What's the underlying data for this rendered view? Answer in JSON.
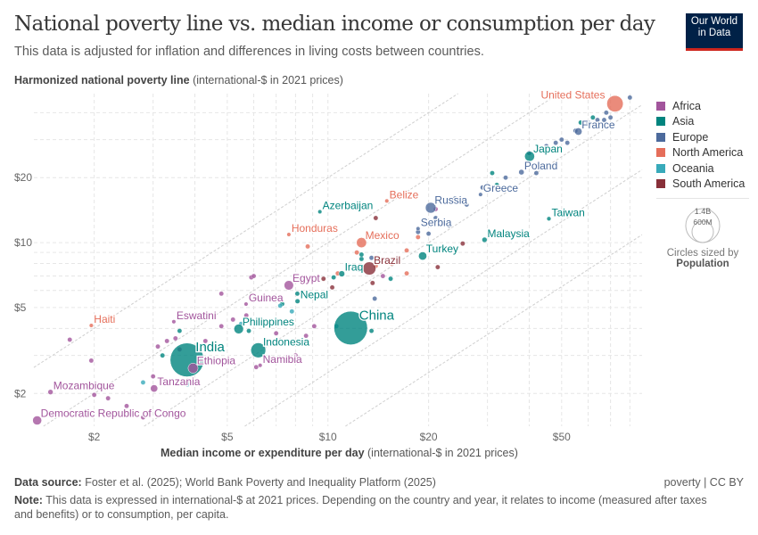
{
  "header": {
    "title": "National poverty line vs. median income or consumption per day",
    "subtitle": "This data is adjusted for inflation and differences in living costs between countries.",
    "logo": "Our World in Data"
  },
  "footer": {
    "source_label": "Data source:",
    "source": "Foster et al. (2025); World Bank Poverty and Inequality Platform (2025)",
    "license": "poverty | CC BY",
    "note_label": "Note:",
    "note": "This data is expressed in international-$ at 2021 prices. Depending on the country and year, it relates to income (measured after taxes and benefits) or to consumption, per capita."
  },
  "size_legend": {
    "big": "1.4B",
    "small": "600M",
    "caption": "Circles sized by",
    "variable": "Population"
  },
  "chart_data": {
    "type": "scatter",
    "title": "National poverty line vs. median income or consumption per day",
    "xlabel_bold": "Median income or expenditure per day",
    "xlabel_unit": "(international-$ in 2021 prices)",
    "ylabel_bold": "Harmonized national poverty line",
    "ylabel_unit": "(international-$ in 2021 prices)",
    "x_scale": "log",
    "y_scale": "log",
    "xlim": [
      1.32,
      87
    ],
    "ylim": [
      1.41,
      49
    ],
    "x_ticks": [
      {
        "v": 2,
        "label": "$2"
      },
      {
        "v": 5,
        "label": "$5"
      },
      {
        "v": 10,
        "label": "$10"
      },
      {
        "v": 20,
        "label": "$20"
      },
      {
        "v": 50,
        "label": "$50"
      }
    ],
    "y_ticks": [
      {
        "v": 2,
        "label": "$2"
      },
      {
        "v": 5,
        "label": "$5"
      },
      {
        "v": 10,
        "label": "$10"
      },
      {
        "v": 20,
        "label": "$20"
      }
    ],
    "grid": true,
    "legend_position": "right",
    "continents": [
      {
        "name": "Africa",
        "color": "#a2559c"
      },
      {
        "name": "Asia",
        "color": "#00847e"
      },
      {
        "name": "Europe",
        "color": "#4c6a9c"
      },
      {
        "name": "North America",
        "color": "#e56e5a"
      },
      {
        "name": "Oceania",
        "color": "#38aaba"
      },
      {
        "name": "South America",
        "color": "#883039"
      }
    ],
    "labeled_points": [
      {
        "name": "United States",
        "x": 72.2,
        "y": 44.0,
        "continent": "North America",
        "population_m": 335
      },
      {
        "name": "France",
        "x": 56.1,
        "y": 32.7,
        "continent": "Europe",
        "population_m": 68
      },
      {
        "name": "Japan",
        "x": 40.1,
        "y": 25.1,
        "continent": "Asia",
        "population_m": 124
      },
      {
        "name": "Poland",
        "x": 37.9,
        "y": 21.2,
        "continent": "Europe",
        "population_m": 37
      },
      {
        "name": "Greece",
        "x": 28.6,
        "y": 16.7,
        "continent": "Europe",
        "population_m": 10
      },
      {
        "name": "Russia",
        "x": 20.3,
        "y": 14.5,
        "continent": "Europe",
        "population_m": 144
      },
      {
        "name": "Serbia",
        "x": 18.6,
        "y": 11.6,
        "continent": "Europe",
        "population_m": 7
      },
      {
        "name": "Belize",
        "x": 15.0,
        "y": 15.6,
        "continent": "North America",
        "population_m": 0.4
      },
      {
        "name": "Azerbaijan",
        "x": 9.46,
        "y": 13.9,
        "continent": "Asia",
        "population_m": 10
      },
      {
        "name": "Honduras",
        "x": 7.64,
        "y": 10.9,
        "continent": "North America",
        "population_m": 10
      },
      {
        "name": "Mexico",
        "x": 12.6,
        "y": 10.0,
        "continent": "North America",
        "population_m": 128
      },
      {
        "name": "Brazil",
        "x": 13.3,
        "y": 7.59,
        "continent": "South America",
        "population_m": 216
      },
      {
        "name": "Iraq",
        "x": 11.0,
        "y": 7.17,
        "continent": "Asia",
        "population_m": 45
      },
      {
        "name": "Turkey",
        "x": 19.2,
        "y": 8.67,
        "continent": "Asia",
        "population_m": 85
      },
      {
        "name": "Malaysia",
        "x": 29.4,
        "y": 10.3,
        "continent": "Asia",
        "population_m": 34
      },
      {
        "name": "Taiwan",
        "x": 45.8,
        "y": 12.9,
        "continent": "Asia",
        "population_m": 23
      },
      {
        "name": "Egypt",
        "x": 7.64,
        "y": 6.34,
        "continent": "Africa",
        "population_m": 112
      },
      {
        "name": "Nepal",
        "x": 8.11,
        "y": 5.35,
        "continent": "Asia",
        "population_m": 30
      },
      {
        "name": "Guinea",
        "x": 5.69,
        "y": 5.19,
        "continent": "Africa",
        "population_m": 14
      },
      {
        "name": "China",
        "x": 11.7,
        "y": 4.02,
        "continent": "Asia",
        "population_m": 1410
      },
      {
        "name": "Philippines",
        "x": 5.41,
        "y": 3.98,
        "continent": "Asia",
        "population_m": 115
      },
      {
        "name": "Indonesia",
        "x": 6.19,
        "y": 3.17,
        "continent": "Asia",
        "population_m": 277
      },
      {
        "name": "India",
        "x": 3.79,
        "y": 2.86,
        "continent": "Asia",
        "population_m": 1430
      },
      {
        "name": "Ethiopia",
        "x": 3.95,
        "y": 2.62,
        "continent": "Africa",
        "population_m": 126
      },
      {
        "name": "Namibia",
        "x": 6.27,
        "y": 2.7,
        "continent": "Africa",
        "population_m": 2.6
      },
      {
        "name": "Eswatini",
        "x": 3.46,
        "y": 4.3,
        "continent": "Africa",
        "population_m": 1.2
      },
      {
        "name": "Haiti",
        "x": 1.96,
        "y": 4.13,
        "continent": "North America",
        "population_m": 11.7
      },
      {
        "name": "Tanzania",
        "x": 3.02,
        "y": 2.11,
        "continent": "Africa",
        "population_m": 67
      },
      {
        "name": "Mozambique",
        "x": 1.48,
        "y": 2.03,
        "continent": "Africa",
        "population_m": 34
      },
      {
        "name": "Democratic Republic of Congo",
        "x": 1.35,
        "y": 1.5,
        "continent": "Africa",
        "population_m": 102
      }
    ],
    "other_points": {
      "Africa": [
        [
          1.69,
          3.55
        ],
        [
          1.96,
          2.84
        ],
        [
          2.0,
          1.97
        ],
        [
          2.2,
          1.9
        ],
        [
          2.5,
          1.75
        ],
        [
          2.8,
          1.55
        ],
        [
          3.0,
          2.4
        ],
        [
          3.1,
          3.3
        ],
        [
          3.3,
          3.5
        ],
        [
          3.5,
          3.6
        ],
        [
          3.6,
          3.2
        ],
        [
          3.8,
          2.3
        ],
        [
          4.3,
          3.5
        ],
        [
          4.6,
          3.3
        ],
        [
          4.8,
          5.8
        ],
        [
          4.8,
          4.1
        ],
        [
          5.2,
          4.4
        ],
        [
          5.7,
          4.6
        ],
        [
          5.9,
          6.9
        ],
        [
          6.0,
          7.0
        ],
        [
          7.0,
          3.8
        ],
        [
          8.6,
          3.7
        ],
        [
          9.1,
          4.1
        ],
        [
          8.0,
          3.0
        ],
        [
          6.1,
          2.65
        ],
        [
          14.6,
          7.0
        ],
        [
          21,
          14.3
        ]
      ],
      "Asia": [
        [
          3.2,
          3.0
        ],
        [
          3.6,
          3.9
        ],
        [
          4.3,
          3.3
        ],
        [
          5.8,
          3.9
        ],
        [
          7.3,
          5.2
        ],
        [
          8.1,
          5.8
        ],
        [
          10.4,
          6.9
        ],
        [
          12.6,
          8.4
        ],
        [
          12.6,
          8.8
        ],
        [
          15.4,
          6.8
        ],
        [
          13.5,
          3.9
        ],
        [
          32,
          18.5
        ],
        [
          62,
          38
        ],
        [
          57,
          36
        ],
        [
          31,
          21
        ]
      ],
      "Europe": [
        [
          13.8,
          5.5
        ],
        [
          21,
          13
        ],
        [
          23,
          12
        ],
        [
          24,
          16
        ],
        [
          26,
          15
        ],
        [
          29,
          18
        ],
        [
          34,
          20
        ],
        [
          40,
          26
        ],
        [
          45,
          28
        ],
        [
          48,
          29
        ],
        [
          50,
          30
        ],
        [
          52,
          29
        ],
        [
          55,
          33
        ],
        [
          60,
          36
        ],
        [
          64,
          37
        ],
        [
          67,
          37
        ],
        [
          68,
          40
        ],
        [
          80,
          47
        ],
        [
          70,
          38
        ],
        [
          42,
          21
        ],
        [
          13.5,
          8.5
        ],
        [
          12.4,
          7.5
        ],
        [
          18.6,
          11.2
        ],
        [
          20,
          11
        ]
      ],
      "North America": [
        [
          8.7,
          9.6
        ],
        [
          12.2,
          9.0
        ],
        [
          15.5,
          8.0
        ],
        [
          17.2,
          7.2
        ],
        [
          17.2,
          9.2
        ],
        [
          18.6,
          10.6
        ],
        [
          13.9,
          7.8
        ],
        [
          10.7,
          7.2
        ]
      ],
      "South America": [
        [
          9.7,
          6.8
        ],
        [
          10.3,
          6.2
        ],
        [
          13.9,
          13.0
        ],
        [
          21.3,
          7.7
        ],
        [
          25.3,
          9.9
        ],
        [
          13.6,
          6.5
        ]
      ],
      "Oceania": [
        [
          2.8,
          2.25
        ],
        [
          3.8,
          2.2
        ],
        [
          5.5,
          4.2
        ],
        [
          7.2,
          5.1
        ],
        [
          10.6,
          4.1
        ],
        [
          7.8,
          4.8
        ]
      ]
    }
  }
}
